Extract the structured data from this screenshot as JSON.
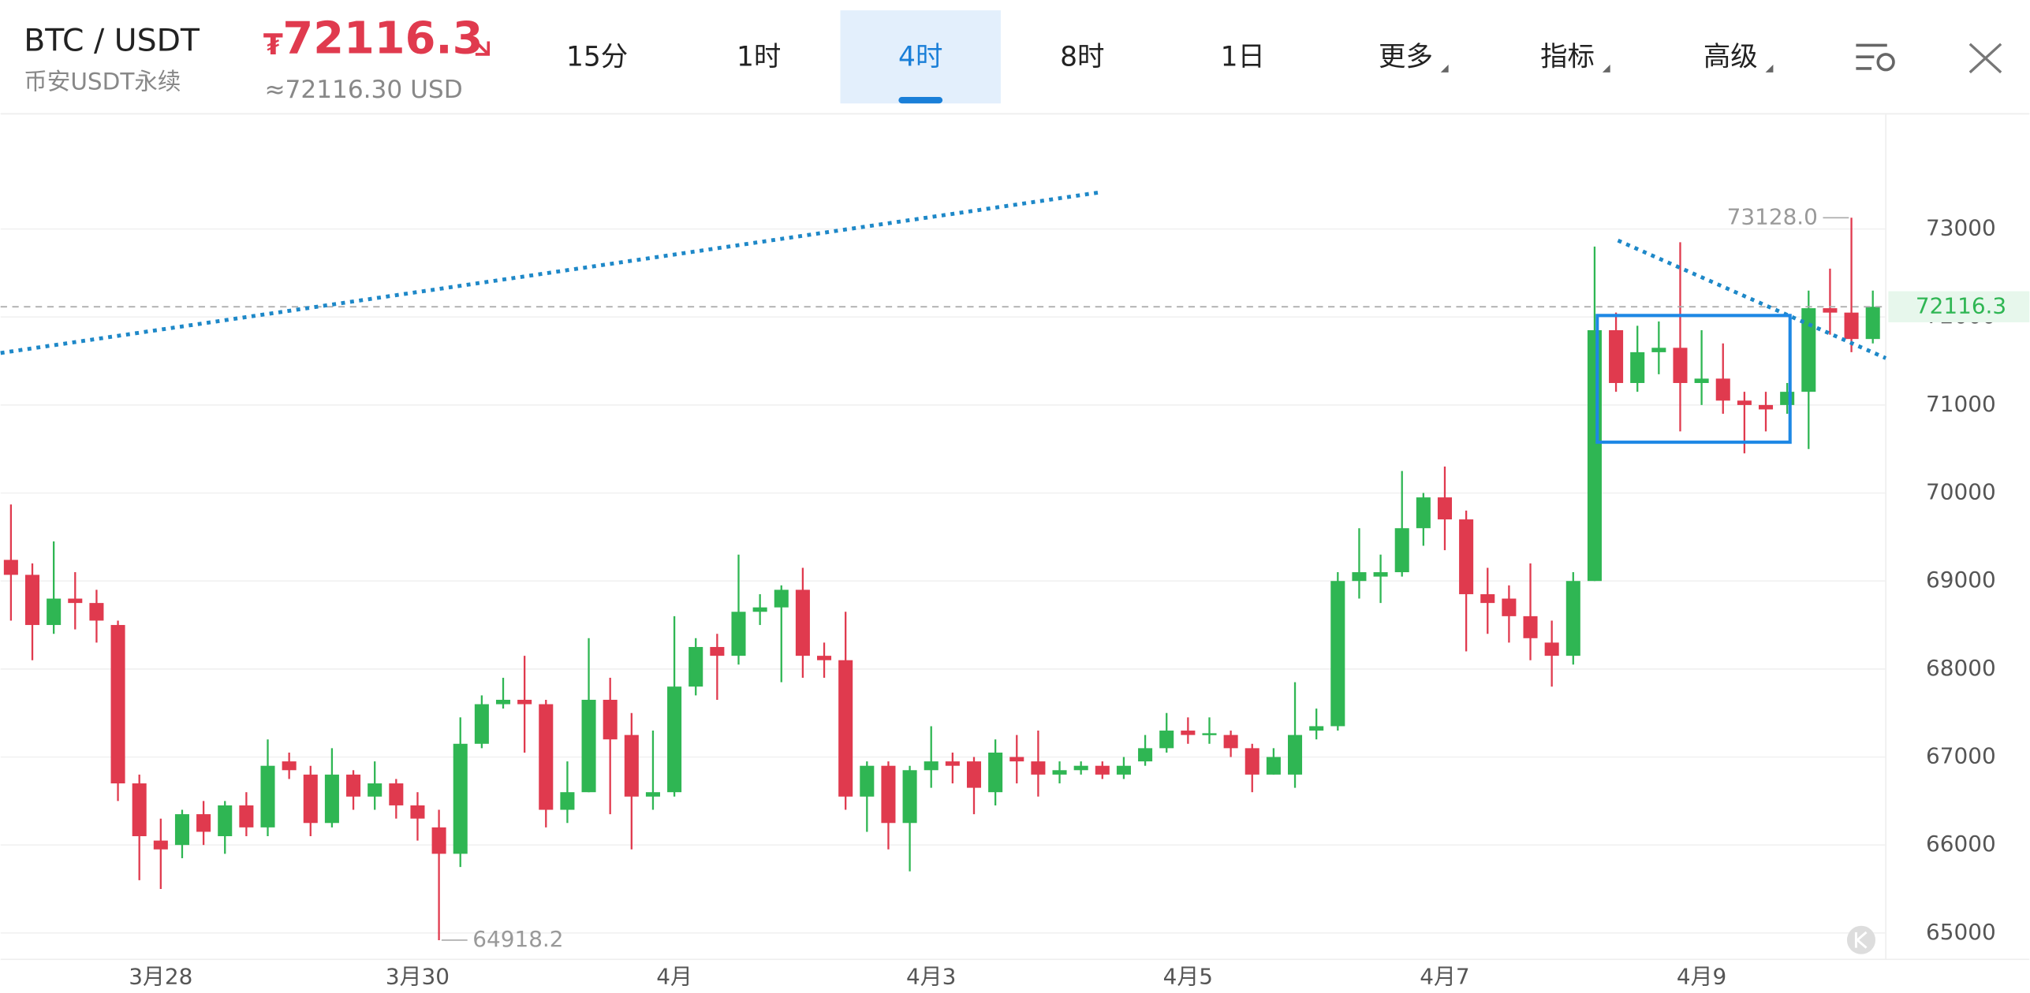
{
  "header": {
    "symbol": "BTC / USDT",
    "market": "币安USDT永续",
    "currency_symbol": "₮",
    "price": "72116.3",
    "price_usd": "≈72116.30 USD"
  },
  "tabs": [
    "15分",
    "1时",
    "4时",
    "8时",
    "1日",
    "更多",
    "指标",
    "高级"
  ],
  "selected_tab": 2,
  "chart_data": {
    "type": "candlestick",
    "categories": [
      null,
      null,
      null,
      null,
      null,
      null,
      null,
      "3月28",
      null,
      null,
      null,
      null,
      null,
      null,
      null,
      null,
      null,
      null,
      null,
      "3月30",
      null,
      null,
      null,
      null,
      null,
      null,
      null,
      null,
      null,
      null,
      null,
      "4月",
      null,
      null,
      null,
      null,
      null,
      null,
      null,
      null,
      null,
      null,
      null,
      "4月3",
      null,
      null,
      null,
      null,
      null,
      null,
      null,
      null,
      null,
      null,
      null,
      "4月5",
      null,
      null,
      null,
      null,
      null,
      null,
      null,
      null,
      null,
      null,
      null,
      "4月7",
      null,
      null,
      null,
      null,
      null,
      null,
      null,
      null,
      null,
      null,
      null,
      "4月9",
      null,
      null,
      null,
      null,
      null,
      null,
      null,
      null
    ],
    "open": [
      69240,
      69070,
      68500,
      68800,
      68750,
      68500,
      66700,
      66050,
      66000,
      66350,
      66100,
      66450,
      66200,
      66950,
      66800,
      66250,
      66800,
      66550,
      66700,
      66450,
      66200,
      65900,
      67150,
      67600,
      67650,
      67600,
      66400,
      66600,
      67650,
      67250,
      66550,
      66600,
      67800,
      68250,
      68150,
      68650,
      68700,
      68900,
      68150,
      68100,
      66550,
      66900,
      66250,
      66850,
      66950,
      66950,
      66600,
      67000,
      66950,
      66800,
      66850,
      66900,
      66800,
      66950,
      67100,
      67300,
      67250,
      67250,
      67100,
      66800,
      66800,
      67300,
      67350,
      69000,
      69050,
      69100,
      69600,
      69950,
      69700,
      68850,
      68800,
      68600,
      68300,
      68150,
      69000,
      71850,
      71250,
      71600,
      71650,
      71250,
      71300,
      71050,
      71000,
      71000,
      71150,
      72100,
      72050,
      71750
    ],
    "high": [
      69870,
      69200,
      69450,
      69100,
      68900,
      68550,
      66800,
      66300,
      66400,
      66500,
      66500,
      66600,
      67200,
      67050,
      66900,
      67100,
      66850,
      66950,
      66750,
      66600,
      66400,
      67450,
      67700,
      67900,
      68150,
      67650,
      66950,
      68350,
      67900,
      67500,
      67300,
      68600,
      68350,
      68400,
      69300,
      68850,
      68950,
      69150,
      68300,
      68650,
      66950,
      66950,
      66900,
      67350,
      67050,
      67000,
      67200,
      67250,
      67300,
      66950,
      66950,
      66950,
      67000,
      67250,
      67500,
      67450,
      67450,
      67300,
      67150,
      67100,
      67850,
      67550,
      69100,
      69600,
      69300,
      70250,
      70000,
      70300,
      69800,
      69150,
      68950,
      69200,
      68550,
      69100,
      72800,
      72050,
      71900,
      71950,
      72850,
      71850,
      71700,
      71150,
      71150,
      71250,
      72300,
      72550,
      73128.0,
      72300
    ],
    "low": [
      68550,
      68100,
      68400,
      68450,
      68300,
      66500,
      65600,
      65500,
      65850,
      66000,
      65900,
      66100,
      66100,
      66750,
      66100,
      66200,
      66400,
      66400,
      66300,
      66050,
      64918.2,
      65750,
      67100,
      67550,
      67050,
      66200,
      66250,
      66600,
      66350,
      65950,
      66400,
      66550,
      67700,
      67650,
      68050,
      68500,
      67850,
      67900,
      67900,
      66400,
      66150,
      65950,
      65700,
      66650,
      66700,
      66350,
      66450,
      66700,
      66550,
      66700,
      66800,
      66750,
      66750,
      66900,
      67050,
      67150,
      67150,
      67000,
      66600,
      66800,
      66650,
      67200,
      67300,
      68800,
      68750,
      69050,
      69400,
      69350,
      68200,
      68400,
      68300,
      68100,
      67800,
      68050,
      69000,
      71150,
      71150,
      71350,
      70700,
      71000,
      70900,
      70450,
      70700,
      70900,
      70500,
      71800,
      71600,
      71700
    ],
    "close": [
      69070,
      68500,
      68800,
      68750,
      68550,
      66700,
      66100,
      65950,
      66350,
      66150,
      66450,
      66200,
      66900,
      66850,
      66250,
      66800,
      66550,
      66700,
      66450,
      66300,
      65900,
      67150,
      67600,
      67650,
      67600,
      66400,
      66600,
      67650,
      67200,
      66550,
      66600,
      67800,
      68250,
      68150,
      68650,
      68700,
      68900,
      68150,
      68100,
      66550,
      66900,
      66250,
      66850,
      66950,
      66900,
      66650,
      67050,
      66950,
      66800,
      66850,
      66900,
      66800,
      66900,
      67100,
      67300,
      67250,
      67270,
      67100,
      66800,
      67000,
      67250,
      67350,
      69000,
      69100,
      69100,
      69600,
      69950,
      69700,
      68850,
      68750,
      68600,
      68350,
      68150,
      69000,
      71850,
      71250,
      71600,
      71650,
      71250,
      71300,
      71050,
      71000,
      70950,
      71150,
      72100,
      72050,
      71750,
      72116.3
    ],
    "up_color": "#2fb653",
    "down_color": "#e03a4e",
    "ylim": [
      64700,
      74280
    ],
    "yticks": [
      65000,
      66000,
      67000,
      68000,
      69000,
      70000,
      71000,
      72000,
      73000
    ],
    "grid": true,
    "last_price": 72116.3,
    "max_label": {
      "index": 86,
      "value": 73128.0,
      "label": "73128.0"
    },
    "min_label": {
      "index": 20,
      "value": 64918.2
    }
  }
}
